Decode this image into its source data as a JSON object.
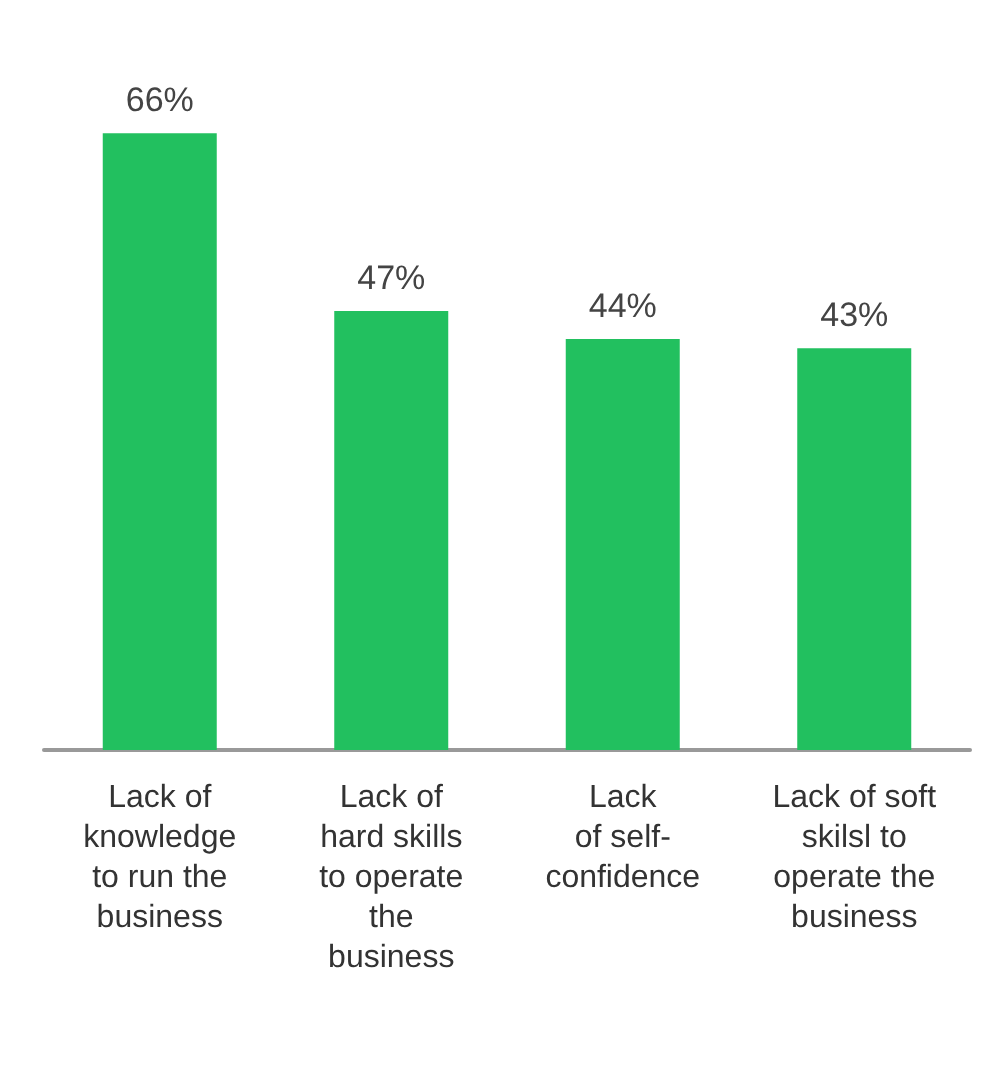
{
  "chart_data": {
    "type": "bar",
    "categories": [
      "Lack of\nknowledge\nto run the\nbusiness",
      "Lack of\nhard skills\nto operate\nthe\nbusiness",
      "Lack\nof self-\nconfidence",
      "Lack of soft\nskilsl to\noperate the\nbusiness"
    ],
    "values": [
      66,
      47,
      44,
      43
    ],
    "value_labels": [
      "66%",
      "47%",
      "44%",
      "43%"
    ],
    "color": "#22c05f"
  }
}
